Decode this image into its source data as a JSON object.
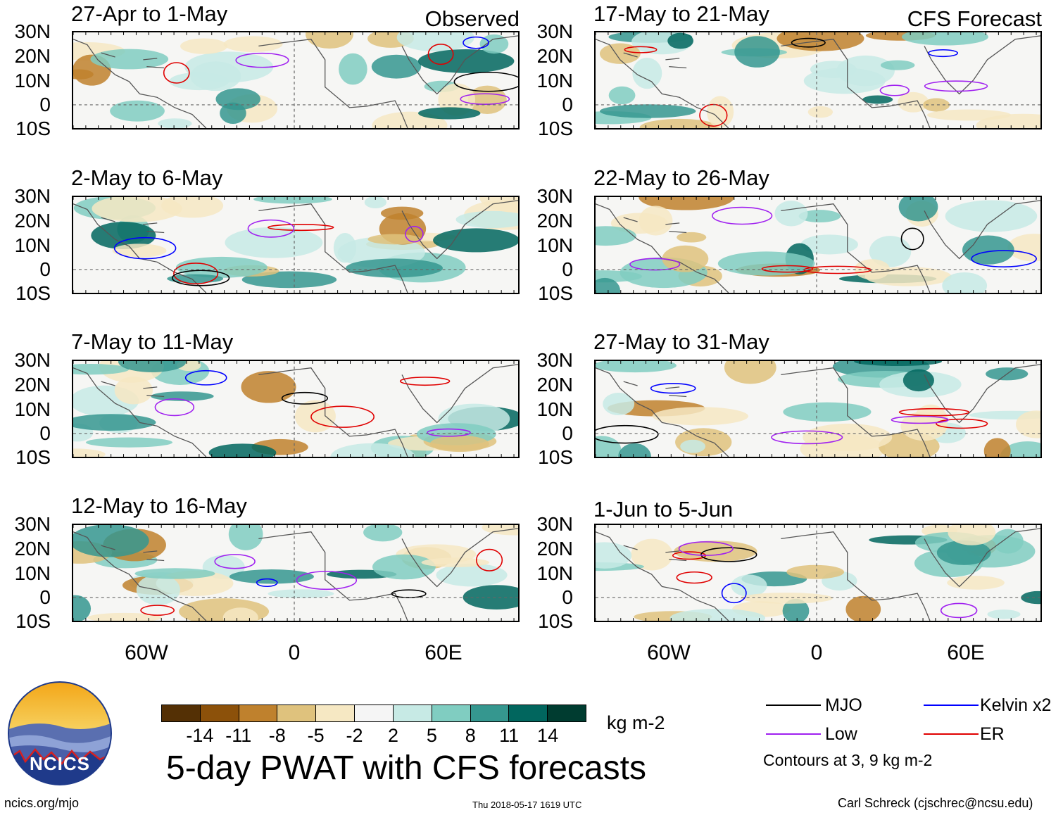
{
  "main_title": "5-day PWAT with CFS forecasts",
  "columns": {
    "left_label": "Observed",
    "right_label": "CFS Forecast"
  },
  "latitude_ticks": [
    "30N",
    "20N",
    "10N",
    "0",
    "10S"
  ],
  "longitude_ticks": [
    "60W",
    "0",
    "60E"
  ],
  "panels_left": [
    {
      "period": "27-Apr to 1-May"
    },
    {
      "period": "2-May to 6-May"
    },
    {
      "period": "7-May to 11-May"
    },
    {
      "period": "12-May to 16-May"
    }
  ],
  "panels_right": [
    {
      "period": "17-May to 21-May"
    },
    {
      "period": "22-May to 26-May"
    },
    {
      "period": "27-May to 31-May"
    },
    {
      "period": "1-Jun to 5-Jun"
    }
  ],
  "colorbar": {
    "labels": [
      "-14",
      "-11",
      "-8",
      "-5",
      "-2",
      "2",
      "5",
      "8",
      "11",
      "14"
    ],
    "units": "kg m-2",
    "colors": [
      "#543005",
      "#8c510a",
      "#bf812d",
      "#dfc27d",
      "#f6e8c3",
      "#f5f5f5",
      "#c7eae5",
      "#80cdc1",
      "#35978f",
      "#01665e",
      "#003c30"
    ]
  },
  "legend": {
    "items": [
      {
        "label": "MJO",
        "color": "#000000"
      },
      {
        "label": "Kelvin x2",
        "color": "#0000ff"
      },
      {
        "label": "Low",
        "color": "#a020f0"
      },
      {
        "label": "ER",
        "color": "#e00000"
      }
    ],
    "contour_note": "Contours at 3, 9 kg m-2"
  },
  "footer": {
    "website": "ncics.org/mjo",
    "timestamp": "Thu 2018-05-17 1619 UTC",
    "credit": "Carl Schreck (cjschrec@ncsu.edu)"
  },
  "logo": {
    "text": "NCICS"
  }
}
